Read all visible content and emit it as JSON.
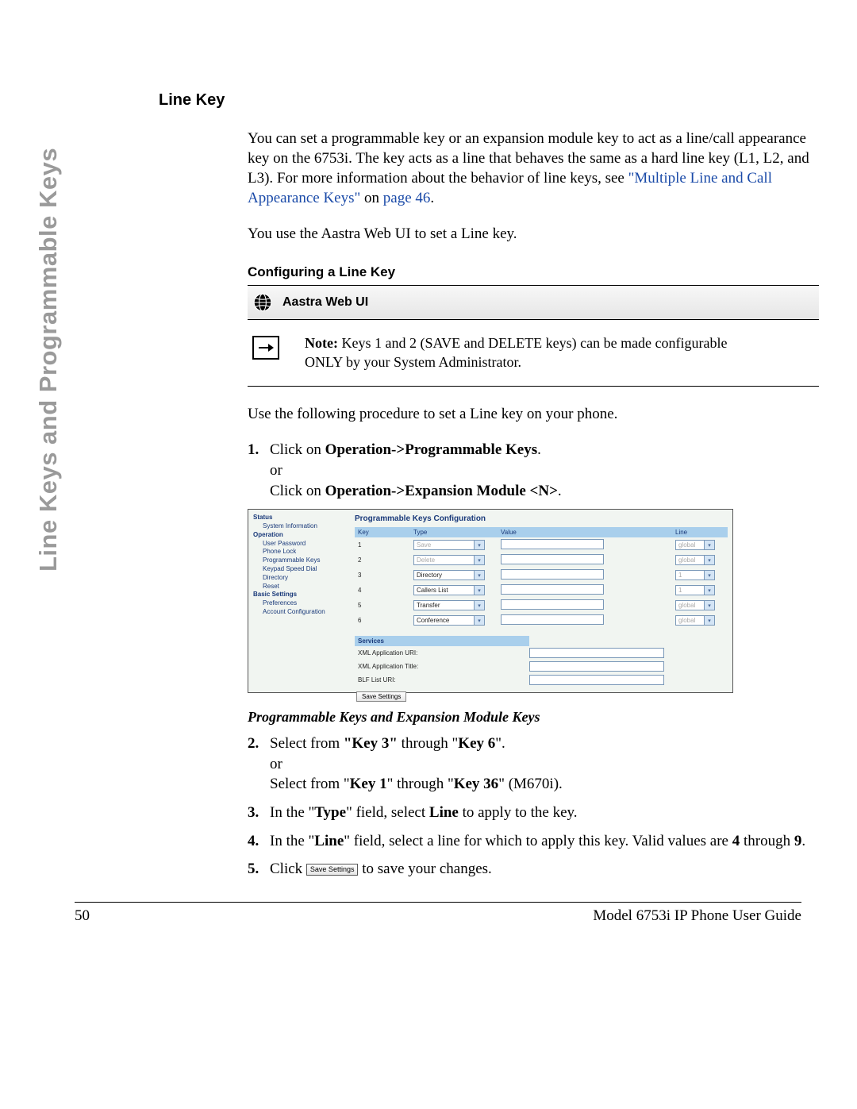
{
  "sideTab": "Line Keys and Programmable Keys",
  "h1": "Line Key",
  "intro1_a": "You can set a programmable key or an expansion module key to act as a line/call appearance key on the 6753i. The key acts as a line that behaves the same as a hard line key (L1, L2, and L3). For more information about the behavior of line keys, see ",
  "intro1_link": "\"Multiple Line and Call Appearance Keys\"",
  "intro1_b": " on ",
  "intro1_page": "page 46",
  "intro1_c": ".",
  "intro2": "You use the Aastra Web UI to set a Line key.",
  "h2_config": "Configuring a Line Key",
  "webui_label": "Aastra Web UI",
  "note_label": "Note:",
  "note_text": " Keys 1 and 2 (SAVE and DELETE keys) can be made configurable ONLY by your System Administrator.",
  "use_following": "Use the following procedure to set a Line key on your phone.",
  "step1_a": "Click on ",
  "step1_b": "Operation->Programmable Keys",
  "step1_c": ".",
  "step1_or": "or",
  "step1_d": "Click on ",
  "step1_e": "Operation->Expansion Module <N>",
  "step1_f": ".",
  "screenshot": {
    "side": {
      "status": "Status",
      "status_items": [
        "System Information"
      ],
      "operation": "Operation",
      "op_items": [
        "User Password",
        "Phone Lock",
        "Programmable Keys",
        "Keypad Speed Dial",
        "Directory",
        "Reset"
      ],
      "basic": "Basic Settings",
      "basic_items": [
        "Preferences",
        "Account Configuration"
      ]
    },
    "title": "Programmable Keys Configuration",
    "cols": [
      "Key",
      "Type",
      "Value",
      "Line"
    ],
    "rows": [
      {
        "key": "1",
        "type": "Save",
        "type_disabled": true,
        "line": "global",
        "line_disabled": true
      },
      {
        "key": "2",
        "type": "Delete",
        "type_disabled": true,
        "line": "global",
        "line_disabled": true
      },
      {
        "key": "3",
        "type": "Directory",
        "type_disabled": false,
        "line": "1",
        "line_disabled": true
      },
      {
        "key": "4",
        "type": "Callers List",
        "type_disabled": false,
        "line": "1",
        "line_disabled": true
      },
      {
        "key": "5",
        "type": "Transfer",
        "type_disabled": false,
        "line": "global",
        "line_disabled": true
      },
      {
        "key": "6",
        "type": "Conference",
        "type_disabled": false,
        "line": "global",
        "line_disabled": true
      }
    ],
    "services_h": "Services",
    "svc_rows": [
      {
        "label": "XML Application URI:"
      },
      {
        "label": "XML Application Title:"
      },
      {
        "label": "BLF List URI:"
      }
    ],
    "save_btn": "Save Settings"
  },
  "subhead": "Programmable Keys and Expansion Module Keys",
  "step2_a": "Select from ",
  "step2_b": "\"Key 3\"",
  "step2_c": " through \"",
  "step2_d": "Key 6",
  "step2_e": "\".",
  "step2_or": "or",
  "step2_f": "Select from \"",
  "step2_g": "Key 1",
  "step2_h": "\" through \"",
  "step2_i": "Key 36",
  "step2_j": "\" (M670i).",
  "step3_a": "In the \"",
  "step3_b": "Type",
  "step3_c": "\" field, select ",
  "step3_d": "Line",
  "step3_e": " to apply to the key.",
  "step4_a": "In the \"",
  "step4_b": "Line",
  "step4_c": "\" field, select a line for which to apply this key. Valid values are ",
  "step4_d": "4",
  "step4_e": " through ",
  "step4_f": "9",
  "step4_g": ".",
  "step5_a": "Click ",
  "step5_btn": "Save Settings",
  "step5_b": " to save your changes.",
  "footer_page": "50",
  "footer_title": "Model 6753i IP Phone User Guide"
}
